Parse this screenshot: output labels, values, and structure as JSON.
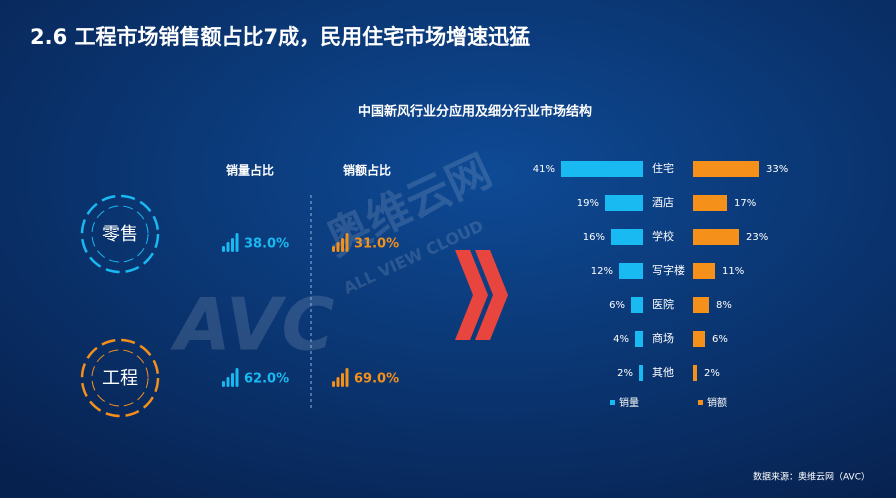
{
  "title": "2.6  工程市场销售额占比7成，民用住宅市场增速迅猛",
  "channel_share": {
    "headers": [
      "销量占比",
      "销额占比"
    ],
    "rows": [
      {
        "label": "零售",
        "cells": [
          "38.0%",
          "31.0%"
        ]
      },
      {
        "label": "工程",
        "cells": [
          "62.0%",
          "69.0%"
        ]
      }
    ]
  },
  "chart_data": {
    "type": "butterfly-bar",
    "title": "中国新风行业分应用及细分行业市场结构",
    "categories": [
      "住宅",
      "酒店",
      "学校",
      "写字楼",
      "医院",
      "商场",
      "其他"
    ],
    "series": [
      {
        "name": "销量",
        "color": "#19b9f2",
        "values": [
          41,
          19,
          16,
          12,
          6,
          4,
          2
        ],
        "value_labels": [
          "41%",
          "19%",
          "16%",
          "12%",
          "6%",
          "4%",
          "2%"
        ]
      },
      {
        "name": "销额",
        "color": "#f5901a",
        "values": [
          33,
          17,
          23,
          11,
          8,
          6,
          2
        ],
        "value_labels": [
          "33%",
          "17%",
          "23%",
          "11%",
          "8%",
          "6%",
          "2%"
        ]
      }
    ]
  },
  "watermark": [
    "AVC",
    "奥维云网",
    "ALL VIEW CLOUD"
  ],
  "source": "数据来源：奥维云网（AVC）"
}
